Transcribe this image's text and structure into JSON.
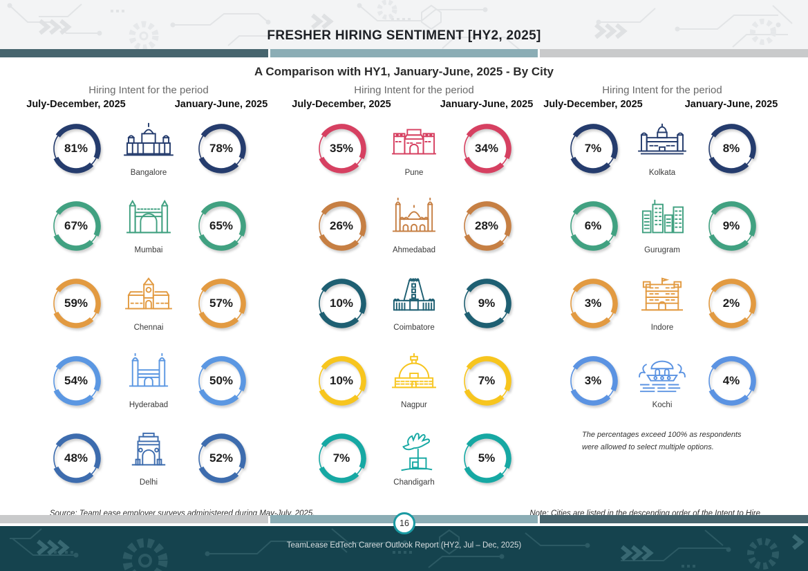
{
  "header": {
    "title": "FRESHER HIRING SENTIMENT [HY2, 2025]",
    "subtitle": "A Comparison with HY1, January-June, 2025 - By City"
  },
  "columns": [
    {
      "intent_label": "Hiring Intent for the period",
      "period_left": "July-December, 2025",
      "period_right": "January-June, 2025",
      "cities": [
        {
          "name": "Bangalore",
          "hy2": "81%",
          "hy1": "78%",
          "color": "#253c6d",
          "icon": "vidhana-soudha-icon"
        },
        {
          "name": "Mumbai",
          "hy2": "67%",
          "hy1": "65%",
          "color": "#41a181",
          "icon": "gateway-of-india-icon"
        },
        {
          "name": "Chennai",
          "hy2": "59%",
          "hy1": "57%",
          "color": "#e29a41",
          "icon": "chennai-central-icon"
        },
        {
          "name": "Hyderabad",
          "hy2": "54%",
          "hy1": "50%",
          "color": "#5b97e2",
          "icon": "charminar-icon"
        },
        {
          "name": "Delhi",
          "hy2": "48%",
          "hy1": "52%",
          "color": "#3d6cae",
          "icon": "india-gate-icon"
        }
      ]
    },
    {
      "intent_label": "Hiring Intent for the period",
      "period_left": "July-December, 2025",
      "period_right": "January-June, 2025",
      "cities": [
        {
          "name": "Pune",
          "hy2": "35%",
          "hy1": "34%",
          "color": "#d64061",
          "icon": "shaniwar-wada-icon"
        },
        {
          "name": "Ahmedabad",
          "hy2": "26%",
          "hy1": "28%",
          "color": "#c67f43",
          "icon": "mosque-icon"
        },
        {
          "name": "Coimbatore",
          "hy2": "10%",
          "hy1": "9%",
          "color": "#1e5f72",
          "icon": "gopuram-icon"
        },
        {
          "name": "Nagpur",
          "hy2": "10%",
          "hy1": "7%",
          "color": "#f7c51e",
          "icon": "stupa-icon"
        },
        {
          "name": "Chandigarh",
          "hy2": "7%",
          "hy1": "5%",
          "color": "#16a8a3",
          "icon": "open-hand-icon"
        }
      ]
    },
    {
      "intent_label": "Hiring Intent for the period",
      "period_left": "July-December, 2025",
      "period_right": "January-June, 2025",
      "cities": [
        {
          "name": "Kolkata",
          "hy2": "7%",
          "hy1": "8%",
          "color": "#253c6d",
          "icon": "victoria-memorial-icon"
        },
        {
          "name": "Gurugram",
          "hy2": "6%",
          "hy1": "9%",
          "color": "#41a181",
          "icon": "skyline-icon"
        },
        {
          "name": "Indore",
          "hy2": "3%",
          "hy1": "2%",
          "color": "#e29a41",
          "icon": "rajwada-icon"
        },
        {
          "name": "Kochi",
          "hy2": "3%",
          "hy1": "4%",
          "color": "#5b93e2",
          "icon": "kochi-boat-icon"
        }
      ],
      "note": "The percentages exceed 100% as respondents were allowed to select multiple options."
    }
  ],
  "bottom": {
    "source": "Source:  TeamLease employer surveys administered during May-July, 2025.",
    "note": "Note: Cities are listed in the descending order of the Intent to Hire",
    "page_number": "16"
  },
  "footer": {
    "report_title": "TeamLease EdTech Career Outlook Report (HY2, Jul – Dec, 2025)"
  },
  "bars": {
    "top": [
      "#47656e",
      "#8badb5",
      "#c9cacb"
    ],
    "bottom": [
      "#c9cacb",
      "#8badb5",
      "#47656e"
    ]
  },
  "chart_data": {
    "type": "bar",
    "title": "Fresher Hiring Sentiment [HY2, 2025] — A Comparison with HY1, January-June, 2025 - By City",
    "unit": "%",
    "categories": [
      "Bangalore",
      "Mumbai",
      "Chennai",
      "Hyderabad",
      "Delhi",
      "Pune",
      "Ahmedabad",
      "Coimbatore",
      "Nagpur",
      "Chandigarh",
      "Kolkata",
      "Gurugram",
      "Indore",
      "Kochi"
    ],
    "series": [
      {
        "name": "July-December, 2025",
        "values": [
          81,
          67,
          59,
          54,
          48,
          35,
          26,
          10,
          10,
          7,
          7,
          6,
          3,
          3
        ]
      },
      {
        "name": "January-June, 2025",
        "values": [
          78,
          65,
          57,
          50,
          52,
          34,
          28,
          9,
          7,
          5,
          8,
          9,
          2,
          4
        ]
      }
    ],
    "legend_position": "column headers",
    "grid": false
  }
}
